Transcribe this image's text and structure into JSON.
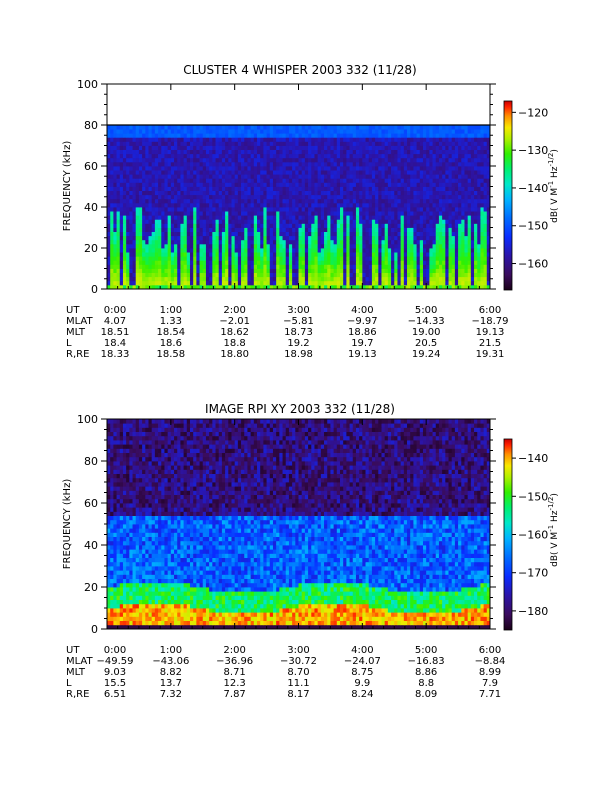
{
  "chart_data": [
    {
      "type": "heatmap",
      "title": "CLUSTER 4 WHISPER 2003 332 (11/28)",
      "ylabel": "FREQUENCY (kHz)",
      "ylim": [
        0,
        100
      ],
      "yticks": [
        "0",
        "20",
        "40",
        "60",
        "80",
        "100"
      ],
      "xticks": [
        "0:00",
        "1:00",
        "2:00",
        "3:00",
        "4:00",
        "5:00",
        "6:00"
      ],
      "data_extent_khz": [
        0,
        80
      ],
      "colorbar": {
        "label": "dB( V M⁻¹ Hz⁻¹ᐟ²)",
        "label_parts": [
          "dB( V M",
          "-1",
          " Hz",
          "-1/2",
          ")"
        ],
        "range": [
          -167,
          -117
        ],
        "ticks": [
          "-120",
          "-130",
          "-140",
          "-150",
          "-160"
        ]
      },
      "colorscale": [
        "#1a0018",
        "#3a0c5c",
        "#2c14a8",
        "#0a2cff",
        "#006cff",
        "#00b4ff",
        "#00e8c8",
        "#00f070",
        "#30f000",
        "#b0f000",
        "#f8e800",
        "#ff9000",
        "#ff2000",
        "#c80000"
      ],
      "ephemeris": {
        "rows": [
          {
            "label": "UT",
            "values": [
              "0:00",
              "1:00",
              "2:00",
              "3:00",
              "4:00",
              "5:00",
              "6:00"
            ]
          },
          {
            "label": "MLAT",
            "values": [
              "4.07",
              "1.33",
              "-2.01",
              "-5.81",
              "-9.97",
              "-14.33",
              "-18.79"
            ]
          },
          {
            "label": "MLT",
            "values": [
              "18.51",
              "18.54",
              "18.62",
              "18.73",
              "18.86",
              "19.00",
              "19.13"
            ]
          },
          {
            "label": "L",
            "values": [
              "18.4",
              "18.6",
              "18.8",
              "19.2",
              "19.7",
              "20.5",
              "21.5"
            ]
          },
          {
            "label": "R,RE",
            "values": [
              "18.33",
              "18.58",
              "18.80",
              "18.98",
              "19.13",
              "19.24",
              "19.31"
            ]
          }
        ]
      }
    },
    {
      "type": "heatmap",
      "title": "IMAGE RPI XY 2003 332 (11/28)",
      "ylabel": "FREQUENCY (kHz)",
      "ylim": [
        0,
        100
      ],
      "yticks": [
        "0",
        "20",
        "40",
        "60",
        "80",
        "100"
      ],
      "xticks": [
        "0:00",
        "1:00",
        "2:00",
        "3:00",
        "4:00",
        "5:00",
        "6:00"
      ],
      "colorbar": {
        "label": "dB( V M⁻¹ Hz⁻¹ᐟ²)",
        "label_parts": [
          "dB( V M",
          "-1",
          " Hz",
          "-1/2",
          ")"
        ],
        "range": [
          -185,
          -135
        ],
        "ticks": [
          "-140",
          "-150",
          "-160",
          "-170",
          "-180"
        ]
      },
      "colorscale": [
        "#1a0018",
        "#3a0c5c",
        "#2c14a8",
        "#0a2cff",
        "#006cff",
        "#00b4ff",
        "#00e8c8",
        "#00f070",
        "#30f000",
        "#b0f000",
        "#f8e800",
        "#ff9000",
        "#ff2000",
        "#c80000"
      ],
      "ephemeris": {
        "rows": [
          {
            "label": "UT",
            "values": [
              "0:00",
              "1:00",
              "2:00",
              "3:00",
              "4:00",
              "5:00",
              "6:00"
            ]
          },
          {
            "label": "MLAT",
            "values": [
              "-49.59",
              "-43.06",
              "-36.96",
              "-30.72",
              "-24.07",
              "-16.83",
              "-8.84"
            ]
          },
          {
            "label": "MLT",
            "values": [
              "9.03",
              "8.82",
              "8.71",
              "8.70",
              "8.75",
              "8.86",
              "8.99"
            ]
          },
          {
            "label": "L",
            "values": [
              "15.5",
              "13.7",
              "12.3",
              "11.1",
              "9.9",
              "8.8",
              "7.9"
            ]
          },
          {
            "label": "R,RE",
            "values": [
              "6.51",
              "7.32",
              "7.87",
              "8.17",
              "8.24",
              "8.09",
              "7.71"
            ]
          }
        ]
      }
    }
  ]
}
